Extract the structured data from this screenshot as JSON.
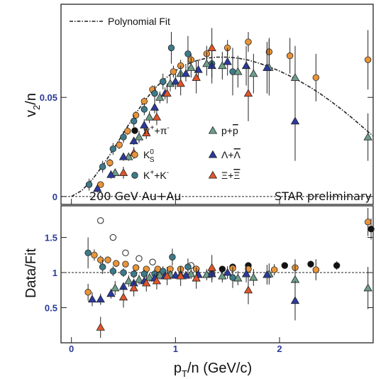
{
  "chart_data": {
    "type": "scatter",
    "xlabel_main": "p",
    "xlabel_sub": "T",
    "xlabel_rest": "/n (GeV/c)",
    "ylabel_top_main": "v",
    "ylabel_top_sub": "2",
    "ylabel_top_rest": "/n",
    "ylabel_bottom": "Data/Fit",
    "xlim": [
      -0.1,
      2.9
    ],
    "ylim_top": [
      -0.004,
      0.097
    ],
    "ylim_bottom": [
      0.0,
      1.95
    ],
    "x_ticks": [
      {
        "v": 0,
        "label": "0"
      },
      {
        "v": 1,
        "label": "1"
      },
      {
        "v": 2,
        "label": "2"
      }
    ],
    "y_ticks_top": [
      {
        "v": 0,
        "label": "0"
      },
      {
        "v": 0.05,
        "label": "0.05"
      }
    ],
    "y_ticks_bottom": [
      {
        "v": 0.5,
        "label": "0.5"
      },
      {
        "v": 1,
        "label": "1"
      },
      {
        "v": 1.5,
        "label": "1.5"
      }
    ],
    "fit_label": "Polynomial Fit",
    "fit_curve": {
      "x": [
        0.0,
        0.1,
        0.2,
        0.3,
        0.4,
        0.5,
        0.6,
        0.7,
        0.8,
        0.9,
        1.0,
        1.1,
        1.2,
        1.3,
        1.4,
        1.5,
        1.6,
        1.7,
        1.8,
        1.9,
        2.0,
        2.1,
        2.2,
        2.3,
        2.4,
        2.5,
        2.6,
        2.7,
        2.8,
        2.9
      ],
      "y": [
        0.0,
        0.003,
        0.0085,
        0.0155,
        0.0235,
        0.032,
        0.0405,
        0.048,
        0.0545,
        0.0595,
        0.0635,
        0.0665,
        0.0685,
        0.0698,
        0.0703,
        0.0703,
        0.0698,
        0.0688,
        0.0673,
        0.0655,
        0.0633,
        0.0608,
        0.058,
        0.055,
        0.0515,
        0.0478,
        0.0438,
        0.0395,
        0.035,
        0.0305
      ]
    },
    "annotation_left": "200 GeV Au+Au",
    "annotation_right": "STAR preliminary",
    "legend": [
      {
        "symbol": "circle",
        "color": "#111111",
        "t1": "π",
        "s1": "+",
        "t2": "+π",
        "s2": "-"
      },
      {
        "symbol": "triangle",
        "color": "#6e9e8a",
        "t1": "p+",
        "t2b": "p"
      },
      {
        "symbol": "circle",
        "color": "#e8943a",
        "t1": "K",
        "sb": "0",
        "sub": "S"
      },
      {
        "symbol": "triangle",
        "color": "#2b3aa0",
        "t1": "Λ+",
        "t2b": "Λ"
      },
      {
        "symbol": "circle",
        "color": "#3d7a8a",
        "t1": "K",
        "s1": "+",
        "t2": "+K",
        "s2": "-"
      },
      {
        "symbol": "triangle",
        "color": "#e0552b",
        "t1": "Ξ+",
        "t2b": "Ξ"
      }
    ],
    "series": [
      {
        "name": "π+π-",
        "symbol": "circle",
        "color": "#111111",
        "top": [],
        "bottom": [
          [
            1.45,
            1.05,
            0.03
          ],
          [
            1.55,
            1.08,
            0.03
          ],
          [
            1.7,
            1.1,
            0.03
          ],
          [
            2.05,
            1.1,
            0.04
          ],
          [
            2.3,
            1.12,
            0.05
          ],
          [
            2.55,
            1.1,
            0.06
          ],
          [
            2.88,
            1.62,
            0.15
          ]
        ]
      },
      {
        "name": "open-circle",
        "symbol": "open-circle",
        "color": "#111111",
        "top": [],
        "bottom": [
          [
            0.28,
            1.74,
            0.03
          ],
          [
            0.4,
            1.5,
            0.03
          ],
          [
            0.52,
            1.28,
            0.03
          ],
          [
            0.65,
            1.2,
            0.03
          ],
          [
            0.78,
            1.15,
            0.03
          ],
          [
            1.15,
            1.1,
            0.03
          ]
        ]
      },
      {
        "name": "K0S",
        "symbol": "circle",
        "color": "#e8943a",
        "top": [
          [
            0.28,
            0.006,
            0.001
          ],
          [
            0.37,
            0.017,
            0.002
          ],
          [
            0.46,
            0.026,
            0.002
          ],
          [
            0.54,
            0.033,
            0.002
          ],
          [
            0.62,
            0.041,
            0.002
          ],
          [
            0.7,
            0.048,
            0.002
          ],
          [
            0.78,
            0.054,
            0.002
          ],
          [
            0.88,
            0.058,
            0.002
          ],
          [
            0.98,
            0.063,
            0.003
          ],
          [
            1.05,
            0.066,
            0.003
          ],
          [
            1.15,
            0.069,
            0.003
          ],
          [
            1.3,
            0.072,
            0.004
          ],
          [
            1.5,
            0.075,
            0.004
          ],
          [
            1.7,
            0.078,
            0.005
          ],
          [
            1.9,
            0.073,
            0.007
          ],
          [
            2.1,
            0.071,
            0.009
          ],
          [
            2.35,
            0.06,
            0.012
          ],
          [
            2.85,
            0.069,
            0.015
          ]
        ],
        "bottom": [
          [
            0.16,
            0.72,
            0.12
          ],
          [
            0.22,
            1.25,
            0.08
          ],
          [
            0.28,
            1.18,
            0.06
          ],
          [
            0.35,
            1.18,
            0.05
          ],
          [
            0.43,
            1.13,
            0.05
          ],
          [
            0.52,
            1.12,
            0.04
          ],
          [
            0.62,
            1.07,
            0.04
          ],
          [
            0.72,
            1.05,
            0.04
          ],
          [
            0.83,
            1.05,
            0.04
          ],
          [
            0.95,
            1.05,
            0.04
          ],
          [
            1.05,
            1.05,
            0.04
          ],
          [
            1.2,
            1.05,
            0.05
          ],
          [
            1.35,
            1.04,
            0.05
          ],
          [
            1.55,
            1.06,
            0.06
          ],
          [
            1.7,
            1.05,
            0.07
          ],
          [
            1.95,
            1.04,
            0.08
          ],
          [
            2.15,
            1.07,
            0.12
          ],
          [
            2.35,
            1.04,
            0.15
          ],
          [
            2.85,
            1.72,
            0.2
          ]
        ]
      },
      {
        "name": "K+K-",
        "symbol": "circle",
        "color": "#3d7a8a",
        "top": [
          [
            0.17,
            0.006,
            0.003
          ],
          [
            0.3,
            0.015,
            0.003
          ],
          [
            0.4,
            0.024,
            0.003
          ],
          [
            0.5,
            0.03,
            0.003
          ],
          [
            0.6,
            0.038,
            0.003
          ],
          [
            0.7,
            0.044,
            0.003
          ],
          [
            0.8,
            0.052,
            0.004
          ],
          [
            0.88,
            0.058,
            0.004
          ],
          [
            0.96,
            0.075,
            0.008
          ],
          [
            1.12,
            0.072,
            0.009
          ],
          [
            1.35,
            0.067,
            0.01
          ],
          [
            1.55,
            0.063,
            0.012
          ]
        ],
        "bottom": [
          [
            0.16,
            1.28,
            0.22
          ],
          [
            0.3,
            1.08,
            0.1
          ],
          [
            0.4,
            1.02,
            0.07
          ],
          [
            0.5,
            1.0,
            0.06
          ],
          [
            0.6,
            0.98,
            0.06
          ],
          [
            0.7,
            0.98,
            0.06
          ],
          [
            0.8,
            0.98,
            0.07
          ],
          [
            0.88,
            1.02,
            0.07
          ],
          [
            0.97,
            1.22,
            0.12
          ],
          [
            1.12,
            1.08,
            0.12
          ],
          [
            1.35,
            0.98,
            0.12
          ],
          [
            1.55,
            0.93,
            0.15
          ]
        ]
      },
      {
        "name": "p+pbar",
        "symbol": "triangle",
        "color": "#6e9e8a",
        "top": [
          [
            0.42,
            0.012,
            0.002
          ],
          [
            0.55,
            0.02,
            0.002
          ],
          [
            0.65,
            0.03,
            0.003
          ],
          [
            0.75,
            0.04,
            0.003
          ],
          [
            0.85,
            0.05,
            0.003
          ],
          [
            0.95,
            0.057,
            0.004
          ],
          [
            1.05,
            0.062,
            0.004
          ],
          [
            1.15,
            0.065,
            0.005
          ],
          [
            1.3,
            0.067,
            0.006
          ],
          [
            1.45,
            0.066,
            0.007
          ],
          [
            1.6,
            0.063,
            0.008
          ],
          [
            1.75,
            0.062,
            0.01
          ],
          [
            1.9,
            0.065,
            0.014
          ],
          [
            2.15,
            0.06,
            0.016
          ],
          [
            2.85,
            0.03,
            0.012
          ]
        ],
        "bottom": [
          [
            0.42,
            0.78,
            0.1
          ],
          [
            0.55,
            0.88,
            0.08
          ],
          [
            0.65,
            0.9,
            0.07
          ],
          [
            0.75,
            0.93,
            0.06
          ],
          [
            0.85,
            0.96,
            0.06
          ],
          [
            0.95,
            0.97,
            0.06
          ],
          [
            1.05,
            0.97,
            0.07
          ],
          [
            1.15,
            0.98,
            0.07
          ],
          [
            1.3,
            0.97,
            0.08
          ],
          [
            1.45,
            0.95,
            0.09
          ],
          [
            1.6,
            0.92,
            0.1
          ],
          [
            1.75,
            0.93,
            0.12
          ],
          [
            1.9,
            0.98,
            0.15
          ],
          [
            2.15,
            0.9,
            0.2
          ],
          [
            2.85,
            0.78,
            0.3
          ]
        ]
      },
      {
        "name": "Λ+Λbar",
        "symbol": "triangle",
        "color": "#2b3aa0",
        "top": [
          [
            0.25,
            0.004,
            0.002
          ],
          [
            0.38,
            0.011,
            0.002
          ],
          [
            0.5,
            0.02,
            0.002
          ],
          [
            0.6,
            0.028,
            0.002
          ],
          [
            0.7,
            0.036,
            0.003
          ],
          [
            0.8,
            0.045,
            0.003
          ],
          [
            0.9,
            0.052,
            0.003
          ],
          [
            1.0,
            0.058,
            0.004
          ],
          [
            1.1,
            0.062,
            0.004
          ],
          [
            1.22,
            0.064,
            0.005
          ],
          [
            1.35,
            0.066,
            0.006
          ],
          [
            1.5,
            0.068,
            0.007
          ],
          [
            1.68,
            0.066,
            0.01
          ],
          [
            1.88,
            0.065,
            0.013
          ],
          [
            2.15,
            0.038,
            0.02
          ]
        ],
        "bottom": [
          [
            0.2,
            0.62,
            0.1
          ],
          [
            0.28,
            0.62,
            0.08
          ],
          [
            0.38,
            0.7,
            0.07
          ],
          [
            0.5,
            0.8,
            0.06
          ],
          [
            0.6,
            0.85,
            0.05
          ],
          [
            0.7,
            0.88,
            0.05
          ],
          [
            0.8,
            0.92,
            0.05
          ],
          [
            0.9,
            0.95,
            0.05
          ],
          [
            1.0,
            0.96,
            0.05
          ],
          [
            1.1,
            0.96,
            0.06
          ],
          [
            1.22,
            0.97,
            0.07
          ],
          [
            1.35,
            0.98,
            0.08
          ],
          [
            1.5,
            1.0,
            0.09
          ],
          [
            1.68,
            0.98,
            0.12
          ],
          [
            1.88,
            0.97,
            0.14
          ],
          [
            2.15,
            0.6,
            0.28
          ]
        ]
      },
      {
        "name": "Ξ+Ξbar",
        "symbol": "triangle",
        "color": "#e0552b",
        "top": [
          [
            0.5,
            0.012,
            0.003
          ],
          [
            0.6,
            0.022,
            0.003
          ],
          [
            0.72,
            0.032,
            0.003
          ],
          [
            0.82,
            0.04,
            0.004
          ],
          [
            0.92,
            0.052,
            0.005
          ],
          [
            1.05,
            0.057,
            0.006
          ],
          [
            1.2,
            0.06,
            0.008
          ],
          [
            1.35,
            0.075,
            0.01
          ],
          [
            1.7,
            0.052,
            0.014
          ]
        ],
        "bottom": [
          [
            0.28,
            0.22,
            0.15
          ],
          [
            0.5,
            0.65,
            0.15
          ],
          [
            0.6,
            0.78,
            0.12
          ],
          [
            0.72,
            0.85,
            0.12
          ],
          [
            0.82,
            0.88,
            0.12
          ],
          [
            0.92,
            0.95,
            0.13
          ],
          [
            1.05,
            0.95,
            0.14
          ],
          [
            1.2,
            0.92,
            0.15
          ],
          [
            1.35,
            1.07,
            0.18
          ],
          [
            1.7,
            0.75,
            0.2
          ]
        ]
      }
    ]
  }
}
